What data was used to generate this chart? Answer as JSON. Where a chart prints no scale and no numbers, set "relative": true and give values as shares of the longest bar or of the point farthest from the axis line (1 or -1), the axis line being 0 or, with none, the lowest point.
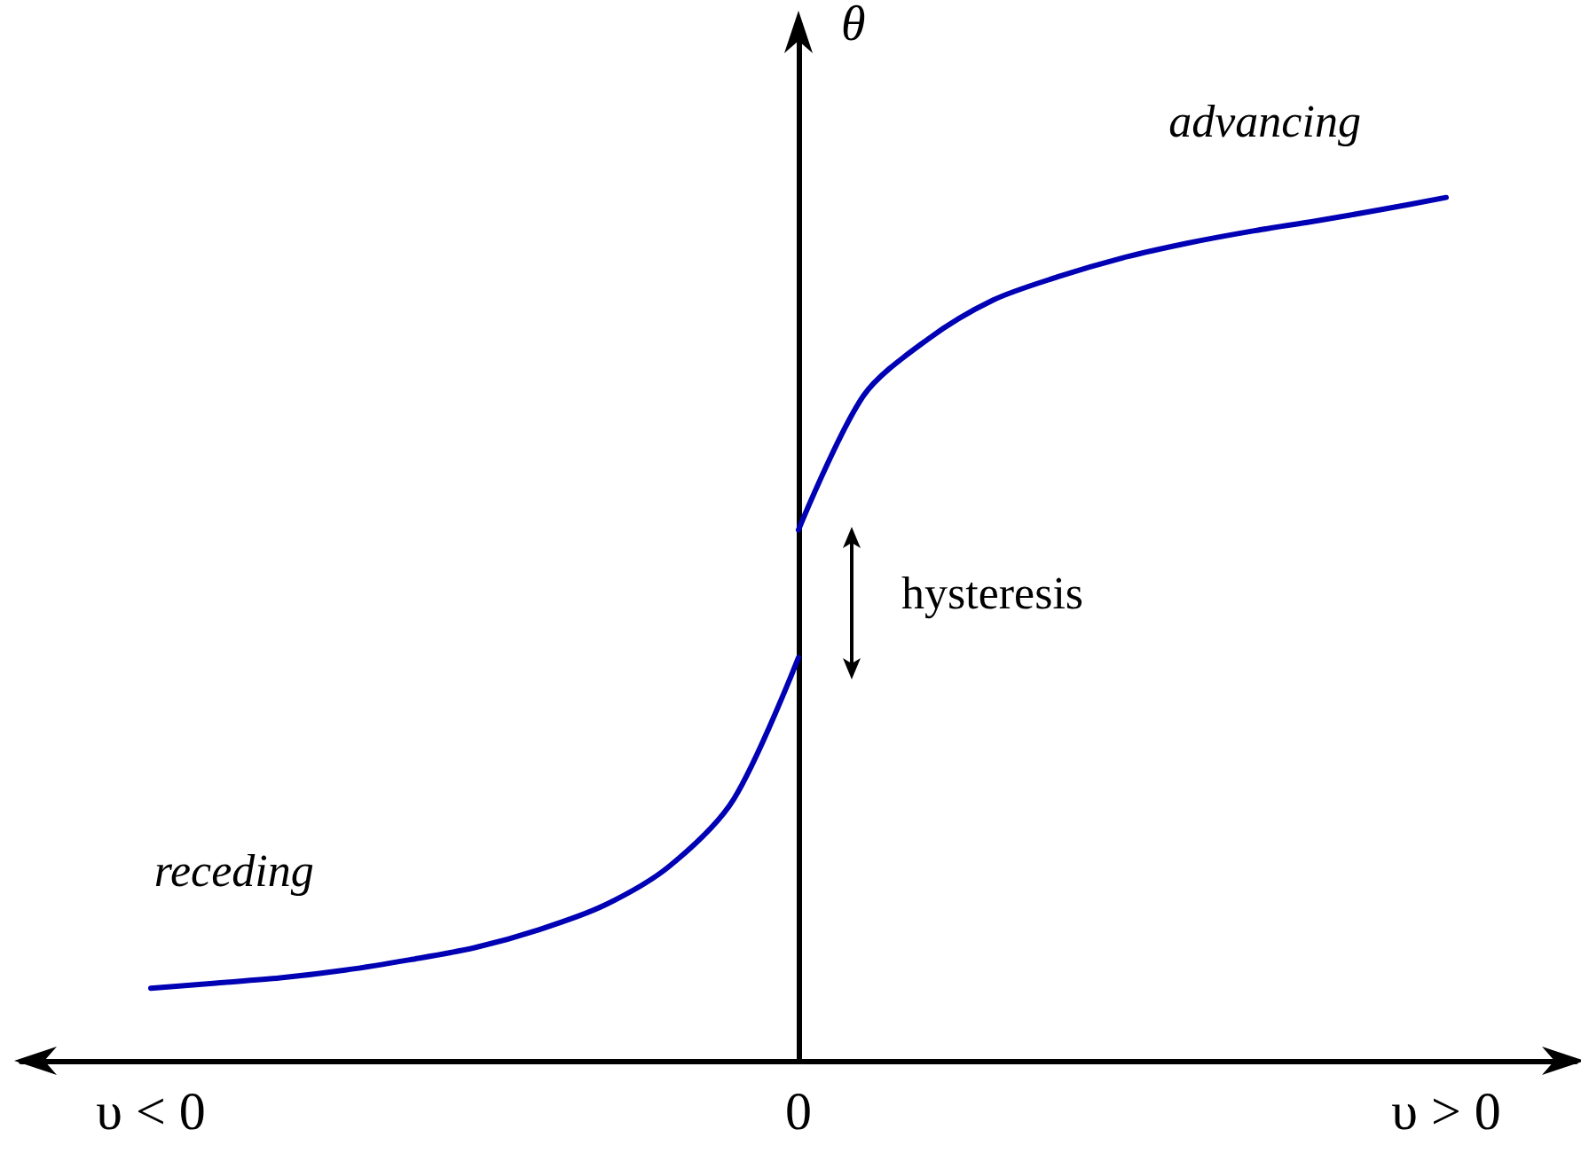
{
  "chart_data": {
    "type": "line",
    "relative": true,
    "ylabel": "θ",
    "categories": [
      null,
      null,
      "υ < 0",
      null,
      null,
      null,
      null,
      null,
      null,
      null,
      null,
      null,
      "0",
      null,
      null,
      null,
      null,
      null,
      null,
      null,
      null,
      null,
      "υ > 0",
      null,
      null
    ],
    "series": [
      {
        "color": "#0000b4",
        "values": [
          null,
          null,
          0.084,
          0.09,
          0.096,
          0.105,
          0.117,
          0.131,
          0.152,
          0.18,
          0.225,
          0.303,
          0.467,
          null,
          null,
          null,
          null,
          null,
          null,
          null,
          null,
          null,
          null,
          null,
          null
        ]
      },
      {
        "color": "#0000b4",
        "values": [
          null,
          null,
          null,
          null,
          null,
          null,
          null,
          null,
          null,
          null,
          null,
          null,
          0.615,
          0.77,
          0.836,
          0.881,
          0.908,
          0.93,
          0.947,
          0.961,
          0.973,
          0.986,
          1.0,
          null,
          null
        ]
      }
    ],
    "marker": "none",
    "line_style": "solid",
    "annotations": [
      "advancing",
      "receding",
      "hysteresis"
    ]
  }
}
